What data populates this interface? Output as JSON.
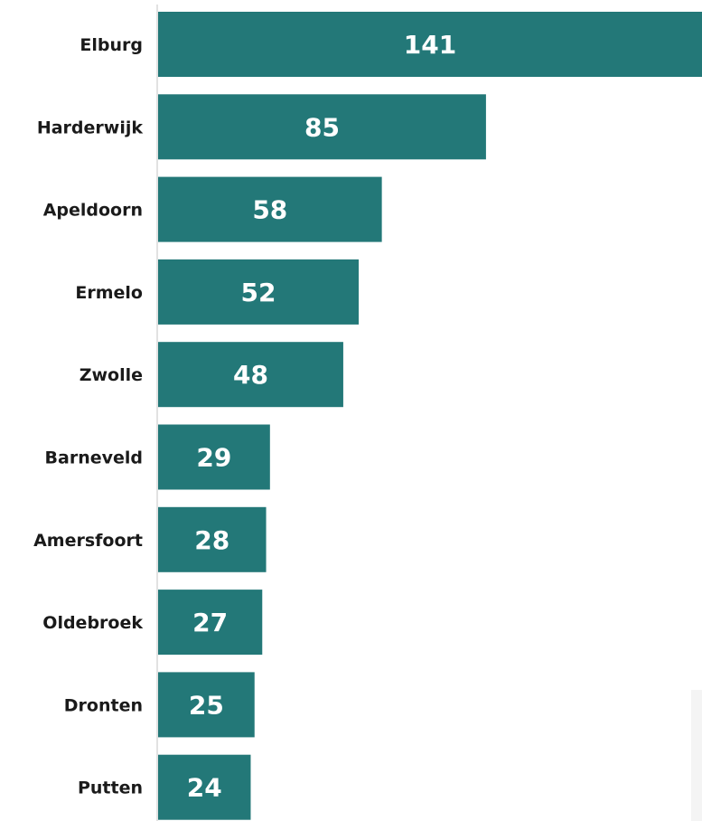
{
  "chart_data": {
    "type": "bar",
    "orientation": "horizontal",
    "categories": [
      "Elburg",
      "Harderwijk",
      "Apeldoorn",
      "Ermelo",
      "Zwolle",
      "Barneveld",
      "Amersfoort",
      "Oldebroek",
      "Dronten",
      "Putten"
    ],
    "values": [
      141,
      85,
      58,
      52,
      48,
      29,
      28,
      27,
      25,
      24
    ],
    "data_labels": [
      "141",
      "85",
      "58",
      "52",
      "48",
      "29",
      "28",
      "27",
      "25",
      "24"
    ],
    "xlim": [
      0,
      141
    ],
    "grid": false,
    "legend": "none",
    "colors": {
      "bar": "#237878",
      "value_label": "#ffffff",
      "category_label": "#1a1a1a",
      "axis": "#d9d9d9"
    }
  }
}
